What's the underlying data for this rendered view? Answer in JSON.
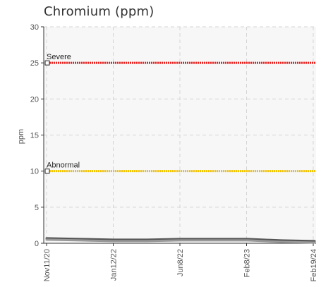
{
  "chart_data": {
    "type": "line",
    "title": "Chromium (ppm)",
    "ylabel": "ppm",
    "xlabel": "",
    "ylim": [
      0,
      30
    ],
    "yticks": [
      0,
      5,
      10,
      15,
      20,
      25,
      30
    ],
    "xticks": [
      "Nov11/20",
      "Jan12/22",
      "Jun8/22",
      "Feb8/23",
      "Feb19/24"
    ],
    "grid": true,
    "thresholds": [
      {
        "label": "Severe",
        "value": 25,
        "color": "#e8201e"
      },
      {
        "label": "Abnormal",
        "value": 10,
        "color": "#f2c200"
      }
    ],
    "series": [
      {
        "color": "#555555",
        "values": [
          0.7,
          0.6,
          0.5,
          0.5,
          0.6,
          0.6,
          0.6,
          0.4,
          0.3
        ]
      },
      {
        "color": "#999999",
        "values": [
          0.5,
          0.4,
          0.3,
          0.3,
          0.4,
          0.4,
          0.4,
          0.2,
          0.1
        ]
      }
    ]
  }
}
